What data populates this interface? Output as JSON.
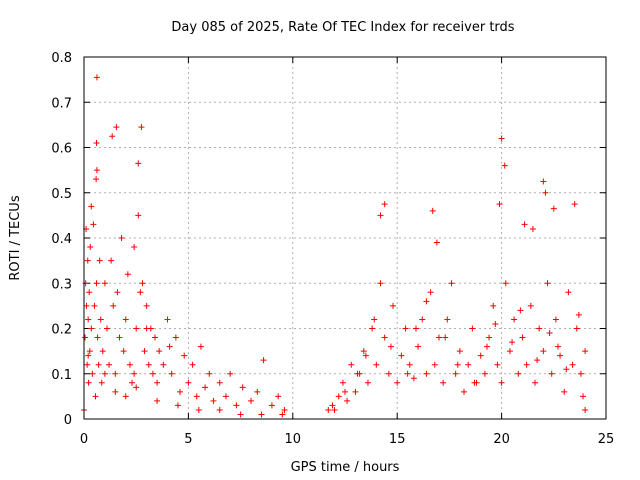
{
  "chart_data": {
    "type": "scatter",
    "title": "Day 085 of 2025, Rate Of TEC Index for receiver trds",
    "xlabel": "GPS time / hours",
    "ylabel": "ROTI / TECUs",
    "xlim": [
      0,
      25
    ],
    "ylim": [
      0,
      0.8
    ],
    "xticks": [
      0,
      5,
      10,
      15,
      20,
      25
    ],
    "xtick_labels": [
      "0",
      "5",
      "10",
      "15",
      "20",
      "25"
    ],
    "yticks": [
      0,
      0.1,
      0.2,
      0.3,
      0.4,
      0.5,
      0.6,
      0.7,
      0.8
    ],
    "ytick_labels": [
      "0",
      "0.1",
      "0.2",
      "0.3",
      "0.4",
      "0.5",
      "0.6",
      "0.7",
      "0.8"
    ],
    "grid": true,
    "marker": "plus",
    "series_color": "#ff0000",
    "series": [
      {
        "name": "ROTI",
        "x": [
          0.0,
          0.05,
          0.08,
          0.1,
          0.12,
          0.15,
          0.18,
          0.2,
          0.22,
          0.25,
          0.28,
          0.3,
          0.35,
          0.4,
          0.45,
          0.5,
          0.55,
          0.6,
          0.62,
          0.65,
          0.7,
          0.75,
          0.8,
          0.85,
          0.9,
          1.0,
          1.1,
          1.2,
          1.3,
          1.4,
          1.5,
          1.6,
          1.7,
          1.8,
          1.9,
          2.0,
          2.1,
          2.2,
          2.3,
          2.4,
          2.5,
          2.6,
          2.7,
          2.8,
          2.9,
          3.0,
          3.1,
          3.2,
          3.3,
          3.4,
          3.5,
          3.6,
          3.8,
          4.0,
          4.2,
          4.4,
          4.6,
          4.8,
          5.0,
          5.2,
          5.4,
          5.6,
          5.8,
          6.0,
          6.2,
          6.5,
          6.8,
          7.0,
          7.3,
          7.6,
          8.0,
          8.3,
          8.6,
          9.0,
          9.3,
          9.6,
          0.35,
          0.6,
          0.62,
          0.58,
          1.35,
          1.55,
          2.6,
          2.75,
          12.0,
          12.2,
          12.4,
          12.6,
          12.8,
          13.0,
          13.2,
          13.4,
          13.6,
          13.8,
          14.0,
          14.2,
          14.4,
          14.6,
          14.8,
          15.0,
          15.2,
          15.4,
          15.6,
          15.8,
          16.0,
          16.2,
          16.4,
          16.6,
          16.8,
          17.0,
          17.2,
          17.4,
          17.6,
          17.8,
          18.0,
          18.2,
          18.4,
          18.6,
          18.8,
          19.0,
          19.2,
          19.4,
          19.6,
          19.8,
          20.0,
          20.2,
          20.4,
          20.6,
          20.8,
          21.0,
          21.2,
          21.4,
          21.6,
          21.8,
          22.0,
          22.2,
          22.4,
          22.6,
          22.8,
          23.0,
          23.2,
          23.4,
          23.6,
          23.8,
          24.0,
          14.2,
          14.4,
          16.7,
          16.9,
          19.9,
          20.0,
          20.15,
          22.0,
          22.1,
          23.5,
          22.5,
          21.1,
          21.5,
          0.2,
          2.4,
          3.0,
          4.1,
          11.7,
          11.9,
          12.5,
          13.1,
          24.0,
          23.9,
          13.5,
          13.9,
          14.7,
          15.5,
          15.9,
          16.4,
          17.3,
          17.9,
          18.7,
          19.3,
          19.7,
          20.5,
          20.9,
          21.7,
          22.3,
          22.7,
          23.1,
          23.7,
          1.0,
          1.5,
          2.0,
          2.5,
          3.5,
          4.5,
          5.5,
          6.5,
          7.5,
          8.5,
          9.5
        ],
        "y": [
          0.02,
          0.18,
          0.3,
          0.42,
          0.25,
          0.12,
          0.35,
          0.22,
          0.08,
          0.28,
          0.15,
          0.38,
          0.2,
          0.1,
          0.43,
          0.25,
          0.05,
          0.3,
          0.55,
          0.18,
          0.12,
          0.35,
          0.22,
          0.08,
          0.15,
          0.3,
          0.2,
          0.12,
          0.35,
          0.25,
          0.1,
          0.28,
          0.18,
          0.4,
          0.15,
          0.22,
          0.32,
          0.12,
          0.08,
          0.38,
          0.2,
          0.45,
          0.28,
          0.3,
          0.15,
          0.25,
          0.12,
          0.2,
          0.1,
          0.18,
          0.08,
          0.15,
          0.12,
          0.22,
          0.1,
          0.18,
          0.06,
          0.14,
          0.08,
          0.12,
          0.05,
          0.16,
          0.07,
          0.1,
          0.04,
          0.08,
          0.05,
          0.1,
          0.03,
          0.07,
          0.04,
          0.06,
          0.13,
          0.03,
          0.05,
          0.02,
          0.47,
          0.61,
          0.755,
          0.53,
          0.625,
          0.645,
          0.565,
          0.645,
          0.02,
          0.05,
          0.08,
          0.04,
          0.12,
          0.06,
          0.1,
          0.15,
          0.08,
          0.2,
          0.12,
          0.3,
          0.18,
          0.1,
          0.25,
          0.08,
          0.14,
          0.2,
          0.12,
          0.09,
          0.16,
          0.22,
          0.1,
          0.28,
          0.12,
          0.18,
          0.08,
          0.22,
          0.3,
          0.1,
          0.15,
          0.06,
          0.12,
          0.2,
          0.08,
          0.14,
          0.1,
          0.18,
          0.25,
          0.12,
          0.08,
          0.3,
          0.15,
          0.22,
          0.1,
          0.18,
          0.12,
          0.25,
          0.08,
          0.2,
          0.15,
          0.3,
          0.1,
          0.22,
          0.14,
          0.06,
          0.28,
          0.12,
          0.2,
          0.1,
          0.15,
          0.45,
          0.475,
          0.46,
          0.39,
          0.475,
          0.62,
          0.56,
          0.525,
          0.5,
          0.475,
          0.465,
          0.43,
          0.42,
          0.14,
          0.1,
          0.2,
          0.16,
          0.02,
          0.03,
          0.06,
          0.1,
          0.02,
          0.05,
          0.14,
          0.22,
          0.16,
          0.1,
          0.2,
          0.26,
          0.18,
          0.12,
          0.08,
          0.16,
          0.21,
          0.17,
          0.24,
          0.13,
          0.19,
          0.16,
          0.11,
          0.23,
          0.1,
          0.06,
          0.05,
          0.07,
          0.04,
          0.03,
          0.02,
          0.02,
          0.01,
          0.01,
          0.01
        ]
      }
    ]
  }
}
